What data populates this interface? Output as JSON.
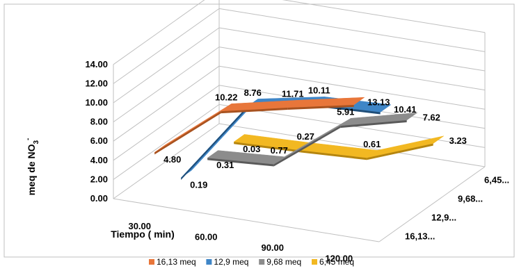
{
  "chart_data": {
    "type": "line",
    "subtype": "3d-ribbon",
    "title": "",
    "xlabel": "Tiempo ( min)",
    "ylabel": "meq de NO",
    "ylabel_subscript": "3",
    "ylabel_superscript": "-",
    "ylim": [
      0,
      14
    ],
    "y_ticks": [
      "0.00",
      "2.00",
      "4.00",
      "6.00",
      "8.00",
      "10.00",
      "12.00",
      "14.00"
    ],
    "categories": [
      "30.00",
      "60.00",
      "90.00",
      "120.00"
    ],
    "depth_labels": [
      "16,13...",
      "12,9...",
      "9,68...",
      "6,45..."
    ],
    "grid": true,
    "legend_position": "bottom",
    "series": [
      {
        "name": "16,13 meq",
        "color": "#E8763A",
        "dark": "#A8521F",
        "values": [
          4.8,
          10.22,
          11.71,
          13.13
        ],
        "labels": [
          "4.80",
          "10.22",
          "11.71",
          "13.13"
        ]
      },
      {
        "name": "12,9 meq",
        "color": "#3F86C7",
        "dark": "#1F4E79",
        "values": [
          0.19,
          8.76,
          10.11,
          10.41
        ],
        "labels": [
          "0.19",
          "8.76",
          "10.11",
          "10.41"
        ]
      },
      {
        "name": "9,68 meq",
        "color": "#8C8C8C",
        "dark": "#5A5A5A",
        "values": [
          0.31,
          0.77,
          5.91,
          7.62
        ],
        "labels": [
          "0.31",
          "0.77",
          "5.91",
          "7.62"
        ]
      },
      {
        "name": "6,45 meq",
        "color": "#F2B822",
        "dark": "#B5850E",
        "values": [
          0.03,
          0.27,
          0.61,
          3.23
        ],
        "labels": [
          "0.03",
          "0.27",
          "0.61",
          "3.23"
        ]
      }
    ]
  }
}
